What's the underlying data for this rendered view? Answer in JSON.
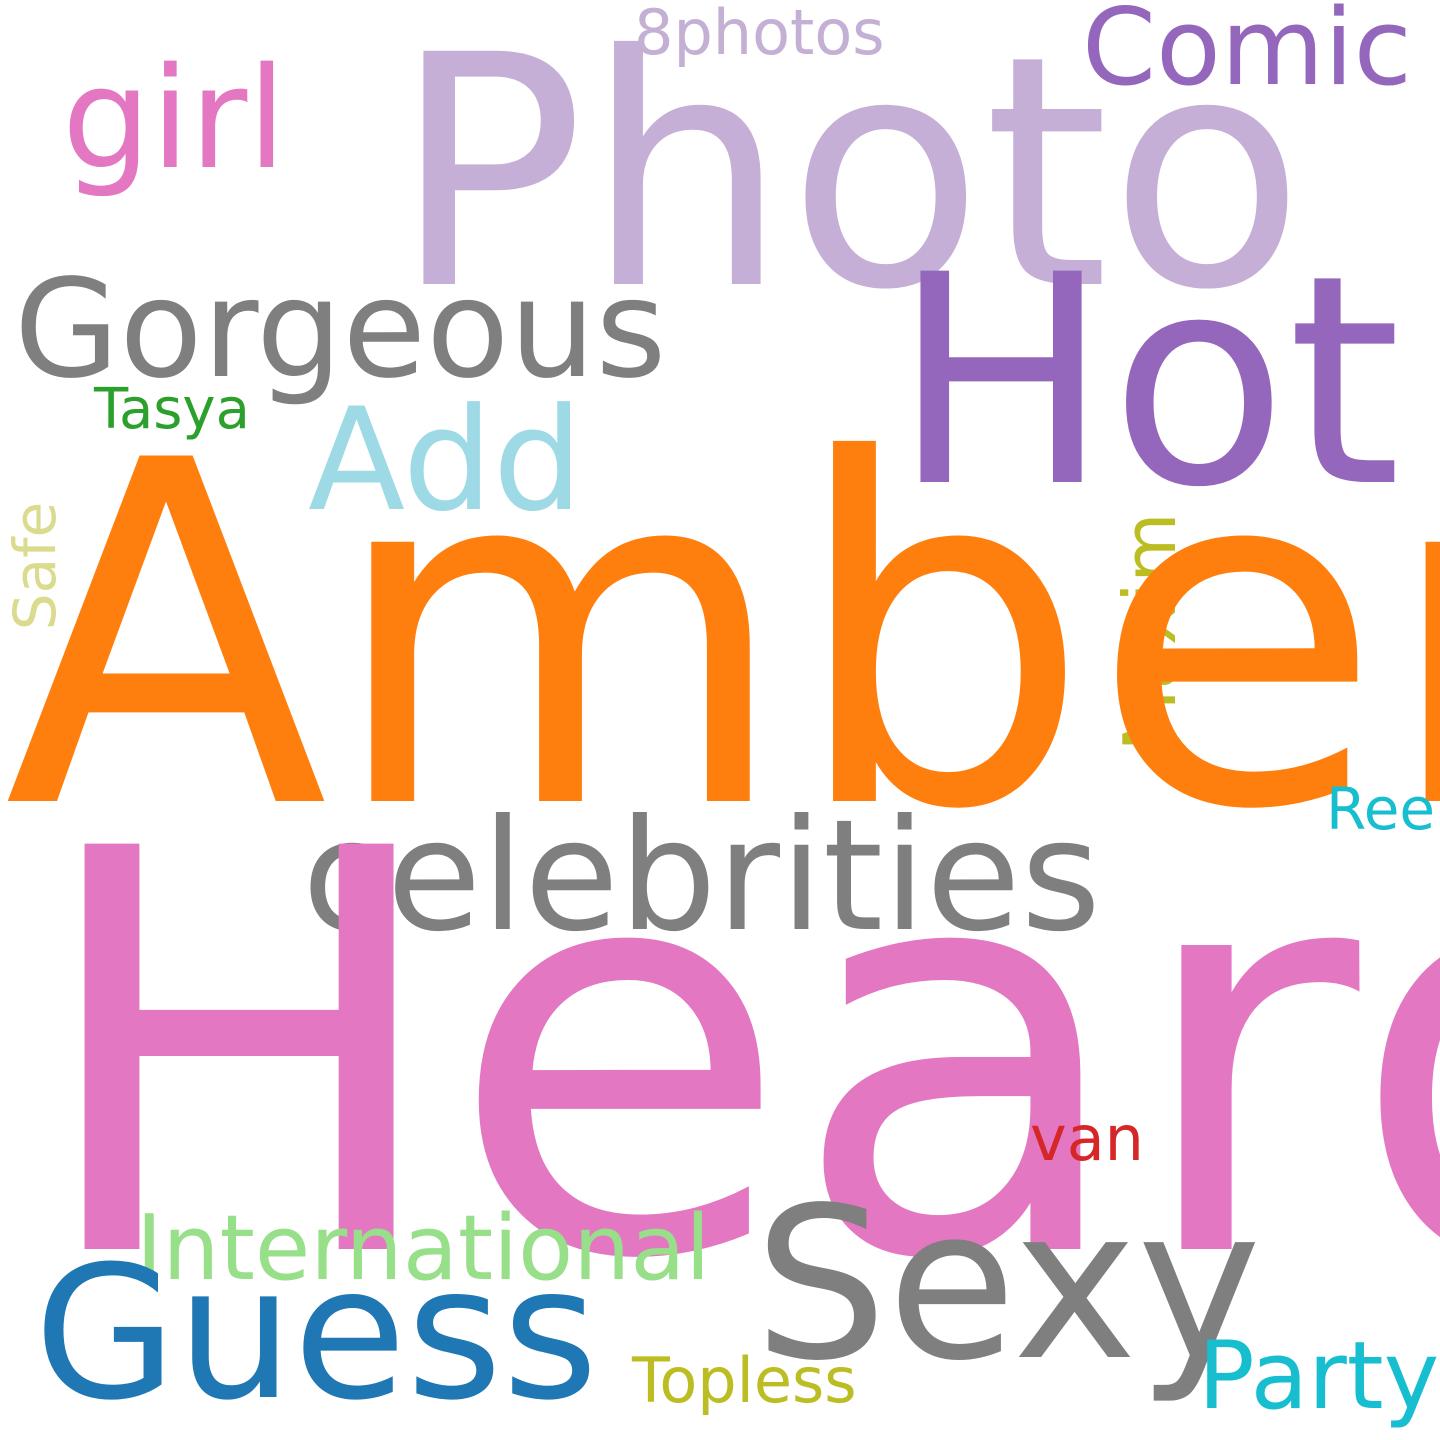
{
  "words": {
    "photo": {
      "text": "Photo",
      "color": "#c5afd6"
    },
    "hot": {
      "text": "Hot",
      "color": "#9467bd"
    },
    "girl": {
      "text": "girl",
      "color": "#e377c2"
    },
    "comic": {
      "text": "Comic",
      "color": "#9467bd"
    },
    "eightphotos": {
      "text": "8photos",
      "color": "#c5b0d5"
    },
    "gorgeous": {
      "text": "Gorgeous",
      "color": "#7f7f7f"
    },
    "tasya": {
      "text": "Tasya",
      "color": "#2ca02c"
    },
    "add": {
      "text": "Add",
      "color": "#9edae5"
    },
    "safe": {
      "text": "Safe",
      "color": "#dbdb8d"
    },
    "maxim": {
      "text": "Maxim",
      "color": "#bcbd22"
    },
    "amber": {
      "text": "Amber",
      "color": "#ff7f0e"
    },
    "ree": {
      "text": "Ree",
      "color": "#17becf"
    },
    "celebrities": {
      "text": "celebrities",
      "color": "#7f7f7f"
    },
    "heard": {
      "text": "Heard",
      "color": "#e377c2"
    },
    "van": {
      "text": "van",
      "color": "#d62728"
    },
    "international": {
      "text": "International",
      "color": "#98df8a"
    },
    "sexy": {
      "text": "Sexy",
      "color": "#7f7f7f"
    },
    "guess": {
      "text": "Guess",
      "color": "#1f77b4"
    },
    "topless": {
      "text": "Topless",
      "color": "#bcbd22"
    },
    "party": {
      "text": "Party",
      "color": "#17becf"
    }
  }
}
